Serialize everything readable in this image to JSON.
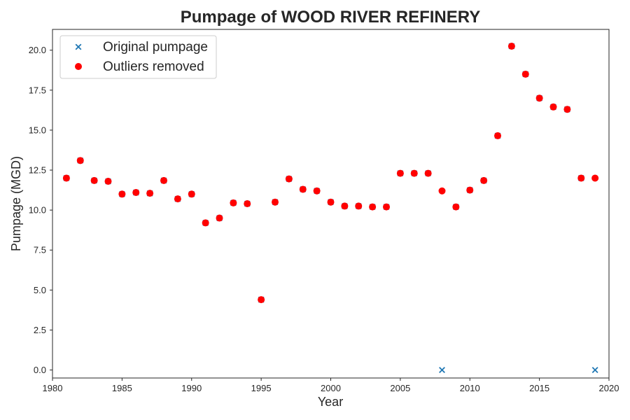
{
  "chart_data": {
    "type": "scatter",
    "title": "Pumpage of WOOD RIVER REFINERY",
    "xlabel": "Year",
    "ylabel": "Pumpage (MGD)",
    "xlim": [
      1980,
      2020
    ],
    "ylim": [
      -0.5,
      21.3
    ],
    "xticks": [
      1980,
      1985,
      1990,
      1995,
      2000,
      2005,
      2010,
      2015,
      2020
    ],
    "yticks": [
      "0.0",
      "2.5",
      "5.0",
      "7.5",
      "10.0",
      "12.5",
      "15.0",
      "17.5",
      "20.0"
    ],
    "grid": false,
    "legend_position": "top-left",
    "series": [
      {
        "name": "Original pumpage",
        "marker": "x",
        "color": "#1f77b4",
        "x": [
          1981,
          1982,
          1983,
          1984,
          1985,
          1986,
          1987,
          1988,
          1989,
          1990,
          1991,
          1992,
          1993,
          1994,
          1995,
          1996,
          1997,
          1998,
          1999,
          2000,
          2001,
          2002,
          2003,
          2004,
          2005,
          2006,
          2007,
          2008,
          2009,
          2010,
          2011,
          2012,
          2013,
          2014,
          2015,
          2016,
          2017,
          2018,
          2019
        ],
        "y": [
          12.0,
          13.1,
          11.85,
          11.8,
          11.0,
          11.1,
          11.05,
          11.85,
          10.7,
          11.0,
          9.2,
          9.5,
          10.45,
          10.4,
          4.4,
          10.5,
          11.95,
          11.3,
          11.2,
          10.5,
          10.25,
          10.25,
          10.2,
          10.2,
          12.3,
          12.3,
          12.3,
          0.0,
          10.2,
          11.25,
          11.85,
          14.65,
          20.25,
          18.5,
          17.0,
          16.45,
          16.3,
          12.0,
          0.0
        ]
      },
      {
        "name": "Outliers removed",
        "marker": "o",
        "color": "#ff0000",
        "x": [
          1981,
          1982,
          1983,
          1984,
          1985,
          1986,
          1987,
          1988,
          1989,
          1990,
          1991,
          1992,
          1993,
          1994,
          1995,
          1996,
          1997,
          1998,
          1999,
          2000,
          2001,
          2002,
          2003,
          2004,
          2005,
          2006,
          2007,
          2008,
          2009,
          2010,
          2011,
          2012,
          2013,
          2014,
          2015,
          2016,
          2017,
          2018,
          2019
        ],
        "y": [
          12.0,
          13.1,
          11.85,
          11.8,
          11.0,
          11.1,
          11.05,
          11.85,
          10.7,
          11.0,
          9.2,
          9.5,
          10.45,
          10.4,
          4.4,
          10.5,
          11.95,
          11.3,
          11.2,
          10.5,
          10.25,
          10.25,
          10.2,
          10.2,
          12.3,
          12.3,
          12.3,
          11.2,
          10.2,
          11.25,
          11.85,
          14.65,
          20.25,
          18.5,
          17.0,
          16.45,
          16.3,
          12.0,
          12.0
        ]
      }
    ]
  }
}
